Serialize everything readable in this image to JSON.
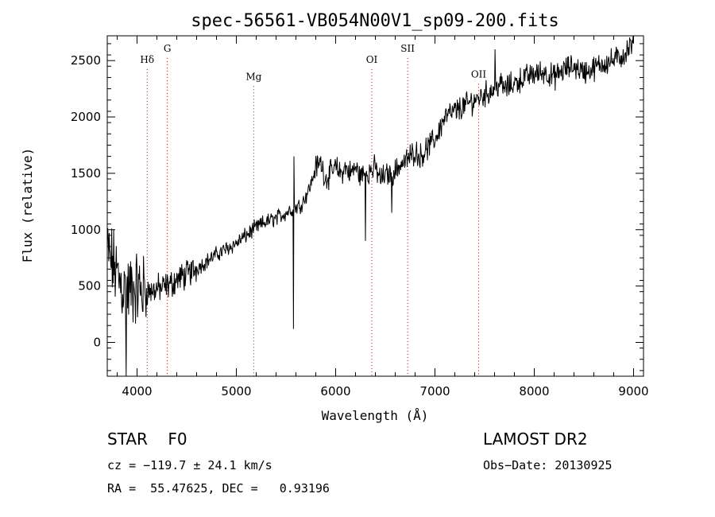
{
  "chart_data": {
    "type": "line",
    "title": "spec-56561-VB054N00V1_sp09-200.fits",
    "xlabel": "Wavelength (Å)",
    "ylabel": "Flux (relative)",
    "xlim": [
      3700,
      9100
    ],
    "ylim": [
      -300,
      2720
    ],
    "xticks": [
      4000,
      5000,
      6000,
      7000,
      8000,
      9000
    ],
    "yticks": [
      0,
      500,
      1000,
      1500,
      2000,
      2500
    ],
    "grid": false,
    "series": [
      {
        "x": [
          3700,
          3750,
          3800,
          3850,
          3900,
          3950,
          4000,
          4050,
          4100,
          4150,
          4200,
          4250,
          4300,
          4350,
          4400,
          4500,
          4600,
          4700,
          4800,
          4900,
          5000,
          5100,
          5200,
          5300,
          5400,
          5500,
          5550,
          5600,
          5650,
          5700,
          5750,
          5800,
          5850,
          5900,
          5950,
          6000,
          6050,
          6100,
          6150,
          6200,
          6250,
          6300,
          6350,
          6400,
          6450,
          6500,
          6550,
          6600,
          6650,
          6700,
          6750,
          6800,
          6850,
          6900,
          6950,
          7000,
          7050,
          7100,
          7200,
          7300,
          7400,
          7500,
          7600,
          7650,
          7700,
          7800,
          7900,
          8000,
          8100,
          8200,
          8300,
          8400,
          8500,
          8600,
          8700,
          8800,
          8900,
          8950,
          9000
        ],
        "values": [
          800,
          700,
          600,
          500,
          450,
          470,
          480,
          460,
          460,
          450,
          480,
          480,
          500,
          520,
          560,
          600,
          660,
          720,
          780,
          830,
          880,
          950,
          1020,
          1070,
          1100,
          1150,
          1180,
          1200,
          1220,
          1300,
          1400,
          1550,
          1600,
          1450,
          1500,
          1550,
          1500,
          1550,
          1500,
          1550,
          1480,
          1500,
          1520,
          1550,
          1450,
          1480,
          1500,
          1520,
          1580,
          1600,
          1650,
          1700,
          1650,
          1700,
          1750,
          1800,
          1900,
          2000,
          2050,
          2100,
          2150,
          2200,
          2250,
          2300,
          2250,
          2300,
          2350,
          2380,
          2400,
          2350,
          2420,
          2450,
          2400,
          2430,
          2480,
          2500,
          2550,
          2600,
          2650
        ]
      }
    ],
    "dips": [
      {
        "x": 3890,
        "value": -300
      },
      {
        "x": 5577,
        "value": 120
      },
      {
        "x": 5582,
        "value": 1650
      },
      {
        "x": 6300,
        "value": 900
      },
      {
        "x": 6563,
        "value": 1150
      },
      {
        "x": 7605,
        "value": 2600
      },
      {
        "x": 7220,
        "value": 2000
      }
    ],
    "lines": [
      {
        "label": "Hδ",
        "x": 4102,
        "label_y": 2480
      },
      {
        "label": "G",
        "x": 4305,
        "label_y": 2580
      },
      {
        "label": "Mg",
        "x": 5175,
        "label_y": 2330
      },
      {
        "label": "OI",
        "x": 6364,
        "label_y": 2480
      },
      {
        "label": "SII",
        "x": 6725,
        "label_y": 2580
      },
      {
        "label": "OII",
        "x": 7440,
        "label_y": 2350
      }
    ],
    "colors": {
      "line": "#000000",
      "marker_line": "#d40000",
      "axes": "#000000"
    }
  },
  "info": {
    "class": "STAR    F0",
    "survey": "LAMOST DR2",
    "cz": "cz = −119.7 ± 24.1 km/s",
    "obs_date": "Obs−Date: 20130925",
    "radec": "RA =  55.47625, DEC =   0.93196"
  }
}
